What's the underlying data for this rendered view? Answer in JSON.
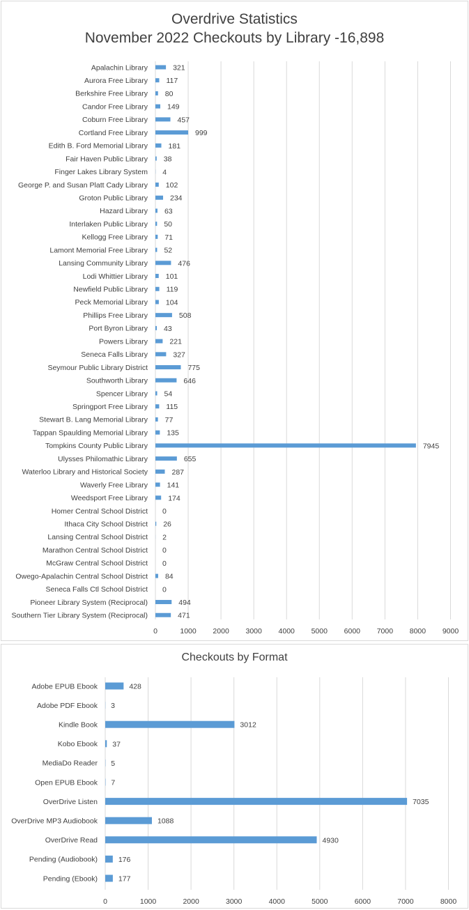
{
  "chart_data": [
    {
      "type": "bar",
      "orientation": "horizontal",
      "title": "Overdrive Statistics",
      "subtitle": "November 2022 Checkouts by Library -16,898",
      "xlim": [
        0,
        9000
      ],
      "xticks": [
        0,
        1000,
        2000,
        3000,
        4000,
        5000,
        6000,
        7000,
        8000,
        9000
      ],
      "grid": true,
      "bar_color": "#5b9bd5",
      "categories": [
        "Apalachin Library",
        "Aurora Free Library",
        "Berkshire Free Library",
        "Candor Free Library",
        "Coburn Free Library",
        "Cortland Free Library",
        "Edith B. Ford Memorial Library",
        "Fair Haven Public Library",
        "Finger Lakes Library System",
        "George P. and Susan Platt Cady Library",
        "Groton Public Library",
        "Hazard Library",
        "Interlaken Public Library",
        "Kellogg Free Library",
        "Lamont Memorial Free Library",
        "Lansing Community Library",
        "Lodi Whittier Library",
        "Newfield Public Library",
        "Peck Memorial Library",
        "Phillips Free Library",
        "Port Byron Library",
        "Powers Library",
        "Seneca Falls Library",
        "Seymour Public Library District",
        "Southworth Library",
        "Spencer Library",
        "Springport Free Library",
        "Stewart B. Lang Memorial Library",
        "Tappan Spaulding Memorial Library",
        "Tompkins County Public Library",
        "Ulysses Philomathic Library",
        "Waterloo Library and Historical Society",
        "Waverly Free Library",
        "Weedsport Free Library",
        "Homer Central School District",
        "Ithaca City School District",
        "Lansing Central School District",
        "Marathon Central School District",
        "McGraw Central School District",
        "Owego-Apalachin Central School District",
        "Seneca Falls Ctl School District",
        "Pioneer Library System (Reciprocal)",
        "Southern Tier Library System (Reciprocal)"
      ],
      "values": [
        321,
        117,
        80,
        149,
        457,
        999,
        181,
        38,
        4,
        102,
        234,
        63,
        50,
        71,
        52,
        476,
        101,
        119,
        104,
        508,
        43,
        221,
        327,
        775,
        646,
        54,
        115,
        77,
        135,
        7945,
        655,
        287,
        141,
        174,
        0,
        26,
        2,
        0,
        0,
        84,
        0,
        494,
        471
      ]
    },
    {
      "type": "bar",
      "orientation": "horizontal",
      "title": "Checkouts by Format",
      "xlim": [
        0,
        8000
      ],
      "xticks": [
        0,
        1000,
        2000,
        3000,
        4000,
        5000,
        6000,
        7000,
        8000
      ],
      "grid": true,
      "bar_color": "#5b9bd5",
      "categories": [
        "Adobe EPUB Ebook",
        "Adobe PDF Ebook",
        "Kindle Book",
        "Kobo Ebook",
        "MediaDo Reader",
        "Open EPUB Ebook",
        "OverDrive Listen",
        "OverDrive MP3 Audiobook",
        "OverDrive Read",
        "Pending (Audiobook)",
        "Pending (Ebook)"
      ],
      "values": [
        428,
        3,
        3012,
        37,
        5,
        7,
        7035,
        1088,
        4930,
        176,
        177
      ]
    }
  ]
}
